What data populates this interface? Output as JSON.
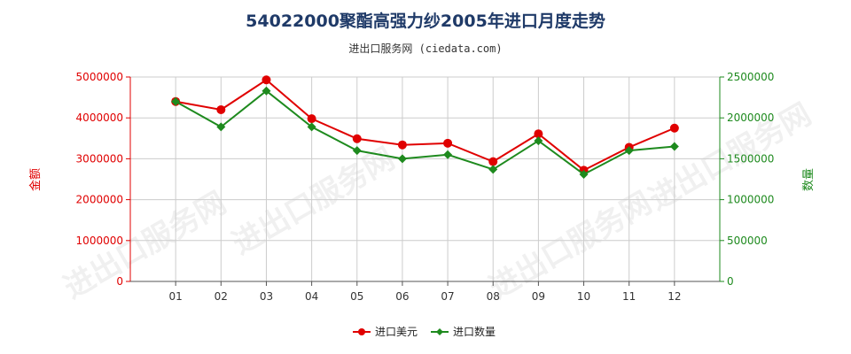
{
  "header": {
    "title": "54022000聚酯高强力纱2005年进口月度走势",
    "subtitle": "进出口服务网 (ciedata.com)"
  },
  "watermark": "进出口服务网",
  "colors": {
    "red": "#e00000",
    "green": "#1e8a1e",
    "title": "#1f3a68"
  },
  "chart_data": {
    "type": "line",
    "categories": [
      "01",
      "02",
      "03",
      "04",
      "05",
      "06",
      "07",
      "08",
      "09",
      "10",
      "11",
      "12"
    ],
    "y_left": {
      "label": "金额",
      "ylim": [
        0,
        5000000
      ],
      "ticks": [
        "0",
        "1000000",
        "2000000",
        "3000000",
        "4000000",
        "5000000"
      ]
    },
    "y_right": {
      "label": "数量",
      "ylim": [
        0,
        2500000
      ],
      "ticks": [
        "0",
        "500000",
        "1000000",
        "1500000",
        "2000000",
        "2500000"
      ]
    },
    "grid": true,
    "legend_position": "bottom-center",
    "series": [
      {
        "name": "进口美元",
        "axis": "left",
        "color": "#e00000",
        "values": [
          4400000,
          4200000,
          4930000,
          3980000,
          3490000,
          3340000,
          3380000,
          2930000,
          3610000,
          2720000,
          3280000,
          3750000
        ]
      },
      {
        "name": "进口数量",
        "axis": "right",
        "color": "#1e8a1e",
        "values": [
          2200000,
          1890000,
          2330000,
          1890000,
          1600000,
          1500000,
          1550000,
          1370000,
          1720000,
          1310000,
          1600000,
          1650000
        ]
      }
    ]
  }
}
